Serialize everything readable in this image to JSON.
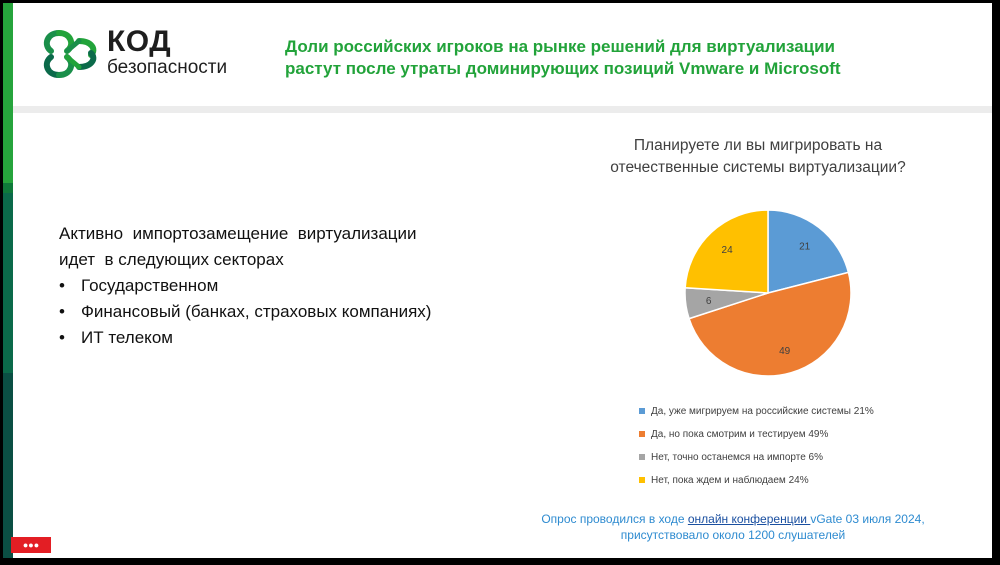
{
  "brand": {
    "logo_line1": "КОД",
    "logo_line2": "безопасности",
    "color_primary": "#22a33a",
    "color_dark": "#1e1e1e"
  },
  "header": {
    "title_line1": "Доли российских игроков на рынке решений для виртуализации",
    "title_line2": "растут после утраты доминирующих позиций Vmware и Microsoft"
  },
  "left_text": {
    "intro_line1": "Активно  импортозамещение  виртуализации",
    "intro_line2": "идет  в следующих секторах",
    "bullets": [
      "Государственном",
      "Финансовый (банках, страховых компаниях)",
      "ИТ телеком"
    ]
  },
  "chart_data": {
    "type": "pie",
    "title_line1": "Планируете ли вы мигрировать на",
    "title_line2": "отечественные системы виртуализации?",
    "legend_position": "bottom",
    "slices": [
      {
        "label": "Да, уже мигрируем на российские системы 21%",
        "value": 21,
        "color": "#5b9bd5"
      },
      {
        "label": "Да, но пока смотрим и тестируем 49%",
        "value": 49,
        "color": "#ed7d31"
      },
      {
        "label": "Нет, точно останемся на импорте 6%",
        "value": 6,
        "color": "#a5a5a5"
      },
      {
        "label": "Нет, пока ждем и наблюдаем 24%",
        "value": 24,
        "color": "#ffc000"
      }
    ]
  },
  "footer": {
    "line1_before": "Опрос проводился в ходе ",
    "line1_link": "онлайн конференции ",
    "line1_after": " vGate 03 июля 2024,",
    "line2": "присутствовало  около 1200 слушателей"
  },
  "badge": {
    "text": "●●●"
  }
}
